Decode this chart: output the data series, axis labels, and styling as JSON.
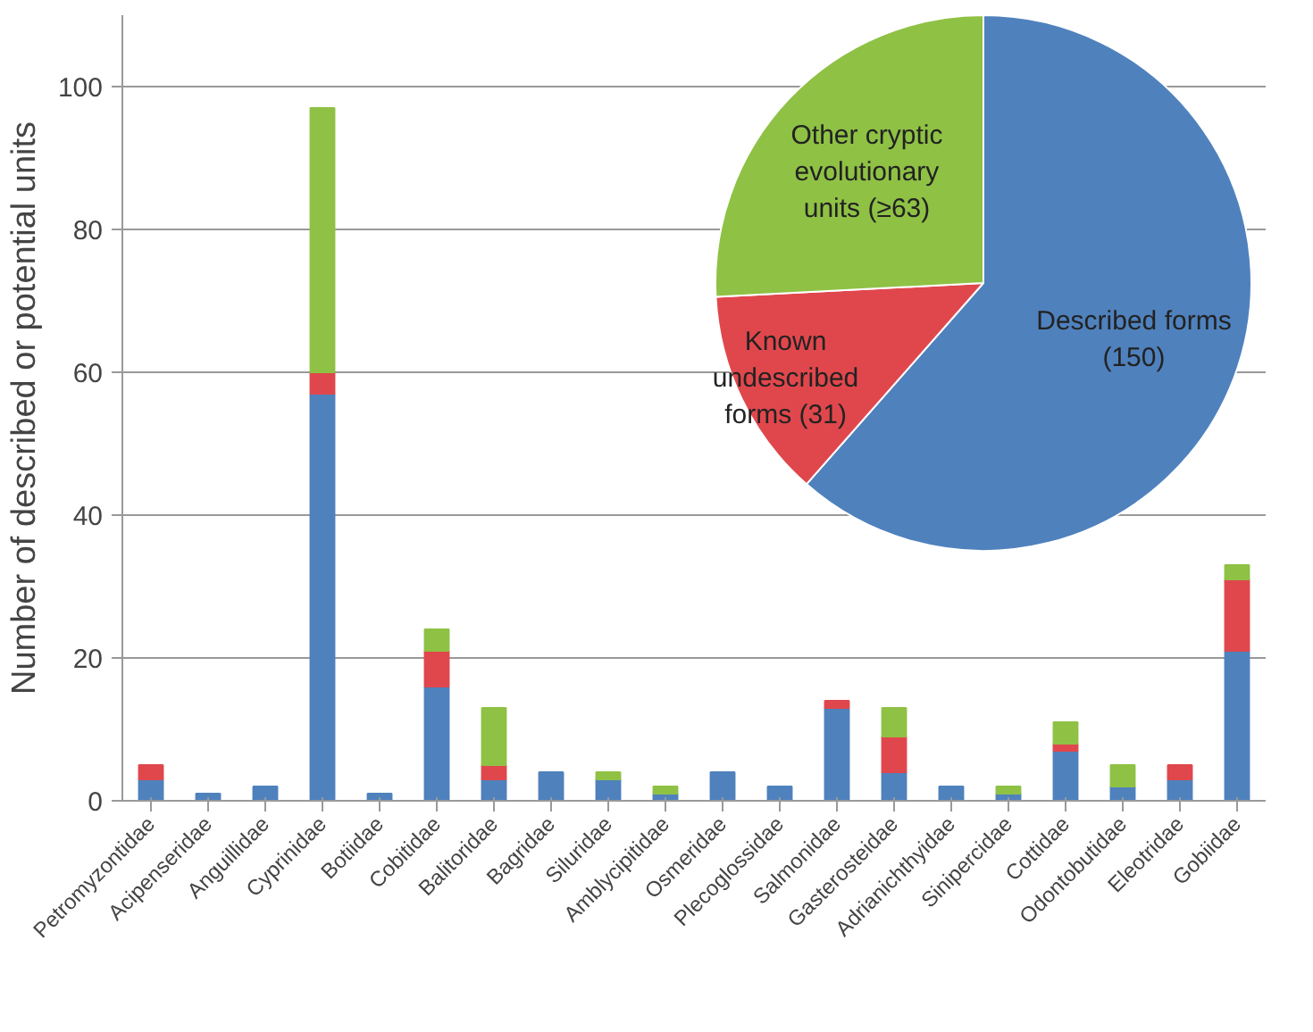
{
  "chart_data": [
    {
      "type": "bar",
      "stacked": true,
      "ylabel": "Number of described or potential units",
      "categories": [
        "Petromyzontidae",
        "Acipenseridae",
        "Anguillidae",
        "Cyprinidae",
        "Botiidae",
        "Cobitidae",
        "Balitoridae",
        "Bagridae",
        "Siluridae",
        "Amblycipitidae",
        "Osmeridae",
        "Plecoglossidae",
        "Salmonidae",
        "Gasterosteidae",
        "Adrianichthyidae",
        "Sinipercidae",
        "Cottidae",
        "Odontobutidae",
        "Eleotridae",
        "Gobiidae"
      ],
      "series": [
        {
          "color": "#4f81bd",
          "values": [
            3,
            1,
            2,
            57,
            1,
            16,
            3,
            4,
            3,
            1,
            4,
            2,
            13,
            4,
            2,
            1,
            7,
            2,
            3,
            21
          ]
        },
        {
          "color": "#e0474c",
          "values": [
            2,
            0,
            0,
            3,
            0,
            5,
            2,
            0,
            0,
            0,
            0,
            0,
            1,
            5,
            0,
            0,
            1,
            0,
            2,
            10
          ]
        },
        {
          "color": "#8fc145",
          "values": [
            0,
            0,
            0,
            37,
            0,
            3,
            8,
            0,
            1,
            1,
            0,
            0,
            0,
            4,
            0,
            1,
            3,
            3,
            0,
            2
          ]
        }
      ],
      "ylim": [
        0,
        110
      ],
      "yticks": [
        0,
        20,
        40,
        60,
        80,
        100
      ],
      "grid": "y"
    },
    {
      "type": "pie",
      "categories": [
        "Described forms",
        "Known undescribed forms",
        "Other cryptic evolutionary units"
      ],
      "values": [
        150,
        31,
        63
      ],
      "value_labels": [
        "(150)",
        "(31)",
        "(≥63)"
      ],
      "colors": [
        "#4f81bd",
        "#e0474c",
        "#8fc145"
      ]
    }
  ]
}
